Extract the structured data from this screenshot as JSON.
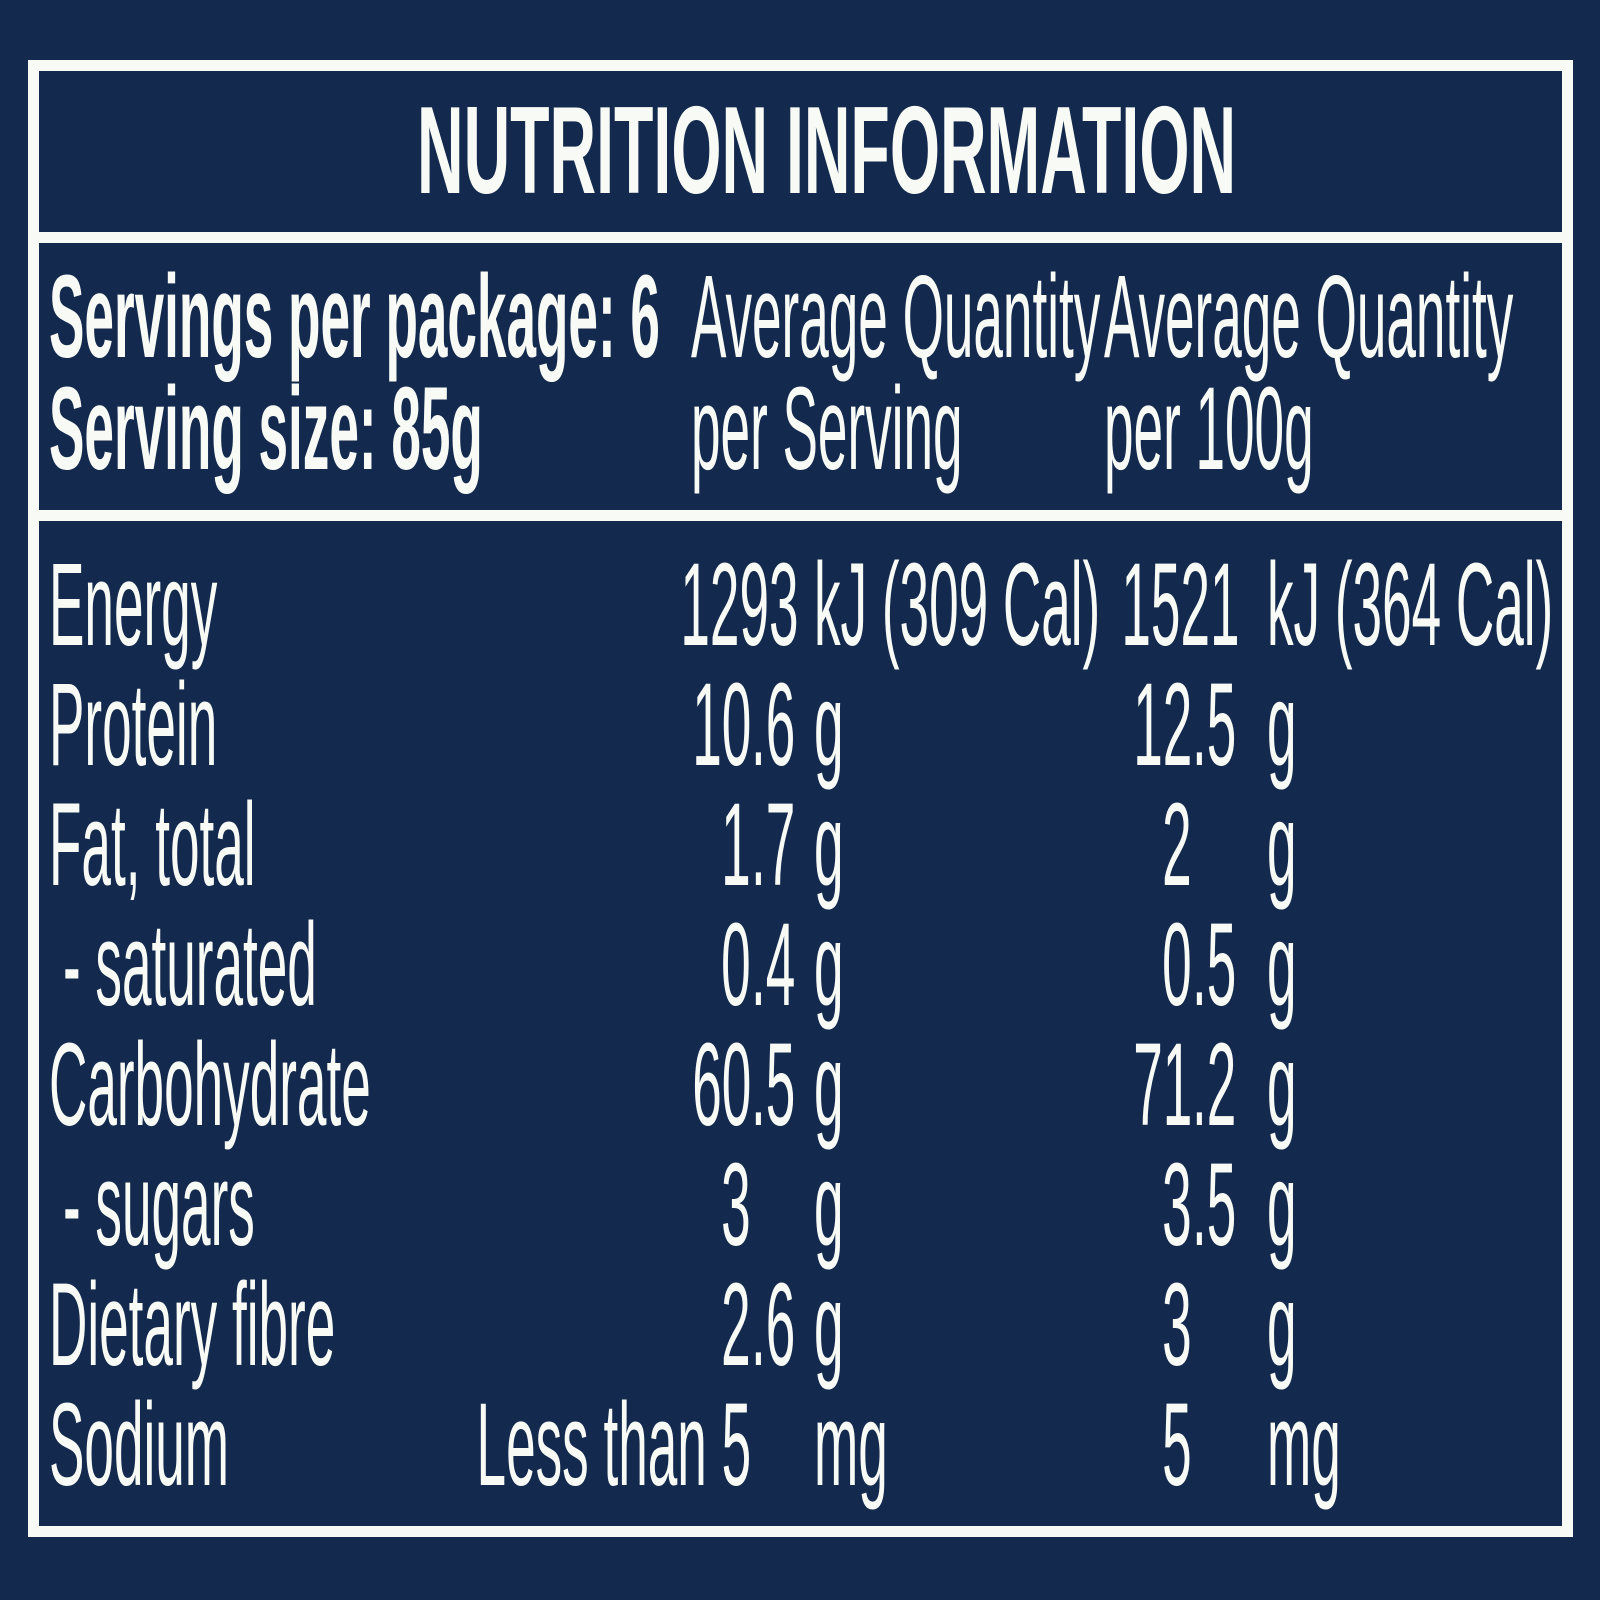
{
  "colors": {
    "background": "#13294E",
    "text": "#F8FAF5",
    "border": "#F8FAF5"
  },
  "panel": {
    "title": "NUTRITION INFORMATION",
    "header": {
      "servings_per_package": "Servings per package: 6",
      "serving_size": "Serving size: 85g",
      "col_per_serving": {
        "line1": "Average Quantity",
        "line2": "per Serving"
      },
      "col_per_100g": {
        "line1": "Average Quantity",
        "line2": "per 100g"
      }
    },
    "rows": [
      {
        "label": "Energy",
        "per_serving": {
          "num": "1293",
          "dec": "",
          "unit": "kJ (309 Cal)",
          "wide": true
        },
        "per_100g": {
          "num": "1521",
          "dec": "",
          "unit": "kJ (364 Cal)",
          "wide": true
        }
      },
      {
        "label": "Protein",
        "per_serving": {
          "num": "10",
          "dec": ".6",
          "unit": "g"
        },
        "per_100g": {
          "num": "12",
          "dec": ".5",
          "unit": "g"
        }
      },
      {
        "label": "Fat, total",
        "per_serving": {
          "num": "1",
          "dec": ".7",
          "unit": "g"
        },
        "per_100g": {
          "num": "2",
          "dec": "",
          "unit": "g"
        }
      },
      {
        "label": "- saturated",
        "per_serving": {
          "num": "0",
          "dec": ".4",
          "unit": "g"
        },
        "per_100g": {
          "num": "0",
          "dec": ".5",
          "unit": "g"
        }
      },
      {
        "label": "Carbohydrate",
        "per_serving": {
          "num": "60",
          "dec": ".5",
          "unit": "g"
        },
        "per_100g": {
          "num": "71",
          "dec": ".2",
          "unit": "g"
        }
      },
      {
        "label": "- sugars",
        "per_serving": {
          "num": "3",
          "dec": "",
          "unit": "g"
        },
        "per_100g": {
          "num": "3",
          "dec": ".5",
          "unit": "g"
        }
      },
      {
        "label": "Dietary fibre",
        "per_serving": {
          "num": "2",
          "dec": ".6",
          "unit": "g"
        },
        "per_100g": {
          "num": "3",
          "dec": "",
          "unit": "g"
        }
      },
      {
        "label": "Sodium",
        "per_serving": {
          "num": "Less than 5",
          "dec": "",
          "unit": "mg"
        },
        "per_100g": {
          "num": "5",
          "dec": "",
          "unit": "mg"
        }
      }
    ]
  }
}
